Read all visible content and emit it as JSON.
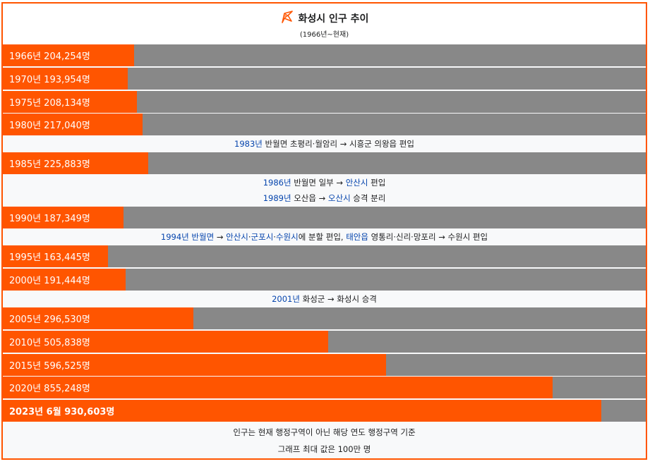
{
  "header": {
    "icon": "flag-icon",
    "title": "화성시 인구 추이",
    "subtitle": "(1966년~현재)"
  },
  "chart_data": {
    "type": "bar",
    "orientation": "horizontal",
    "max_value": 1000000,
    "bars": [
      {
        "label": "1966년 204,254명",
        "year": 1966,
        "value": 204254
      },
      {
        "label": "1970년 193,954명",
        "year": 1970,
        "value": 193954
      },
      {
        "label": "1975년 208,134명",
        "year": 1975,
        "value": 208134
      },
      {
        "label": "1980년 217,040명",
        "year": 1980,
        "value": 217040
      },
      {
        "label": "1985년 225,883명",
        "year": 1985,
        "value": 225883
      },
      {
        "label": "1990년 187,349명",
        "year": 1990,
        "value": 187349
      },
      {
        "label": "1995년 163,445명",
        "year": 1995,
        "value": 163445
      },
      {
        "label": "2000년 191,444명",
        "year": 2000,
        "value": 191444
      },
      {
        "label": "2005년 296,530명",
        "year": 2005,
        "value": 296530
      },
      {
        "label": "2010년 505,838명",
        "year": 2010,
        "value": 505838
      },
      {
        "label": "2015년 596,525명",
        "year": 2015,
        "value": 596525
      },
      {
        "label": "2020년 855,248명",
        "year": 2020,
        "value": 855248
      },
      {
        "label": "2023년 6월 930,603명",
        "year": 2023,
        "value": 930603
      }
    ]
  },
  "events": {
    "e1983": {
      "year_link": "1983년",
      "text": " 반월면 초평리·월암리 → 시흥군 의왕읍 편입"
    },
    "e1986": {
      "year_link": "1986년",
      "text_a": " 반월면 일부 → ",
      "place_link": "안산시",
      "text_b": " 편입"
    },
    "e1989": {
      "year_link": "1989년",
      "text_a": " 오산읍 → ",
      "place_link": "오산시",
      "text_b": " 승격 분리"
    },
    "e1994": {
      "year_link": "1994년",
      "place1_link": "반월면",
      "arrow": " → ",
      "place2_link": "안산시",
      "sep1": "·",
      "place3_link": "군포시",
      "sep2": "·",
      "place4_link": "수원시",
      "text_a": "에 분할 편입, ",
      "place5_link": "태안읍",
      "text_b": " 영통리·신리·망포리 → 수원시 편입"
    },
    "e2001": {
      "year_link": "2001년",
      "text": " 화성군 → 화성시 승격"
    }
  },
  "footer": {
    "line1": "인구는 현재 행정구역이 아닌 해당 연도 행정구역 기준",
    "line2": "그래프 최대 값은 100만 명"
  },
  "colors": {
    "bar": "#ff5500",
    "track": "#888888",
    "link": "#0645ad",
    "border": "#ff5500"
  }
}
